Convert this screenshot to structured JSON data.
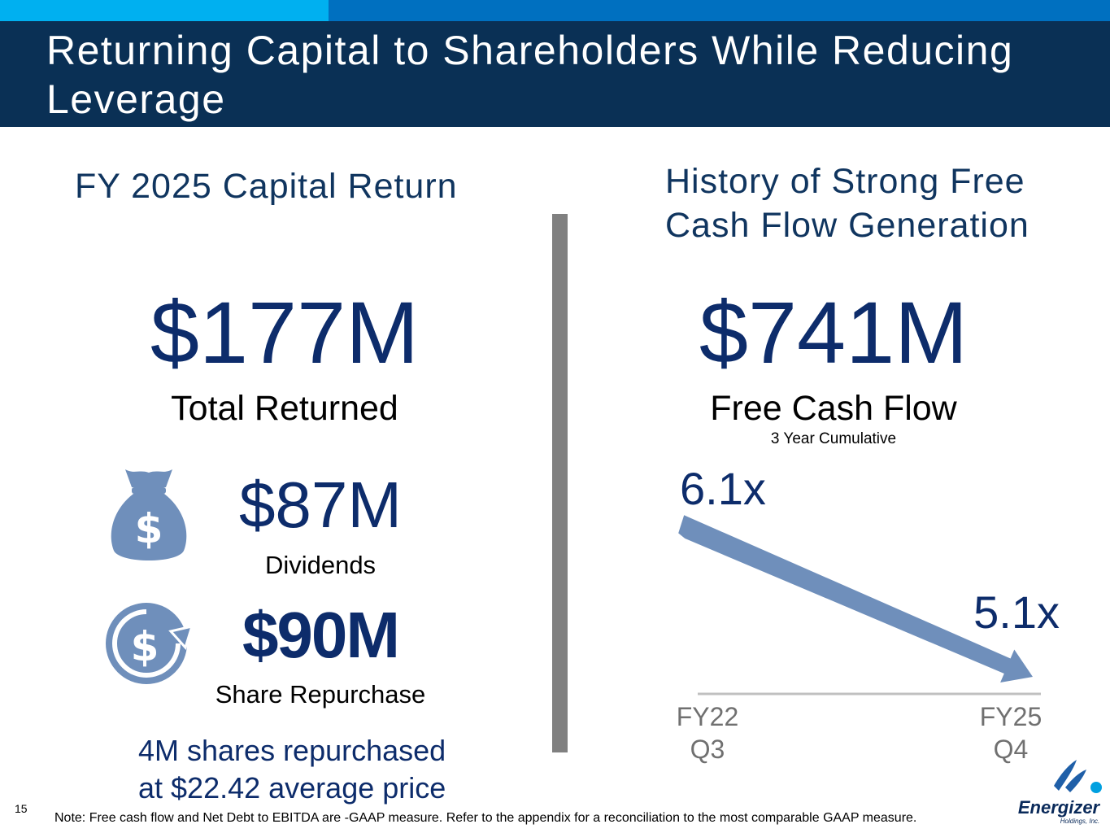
{
  "colors": {
    "title_band": "#0a3055",
    "accent_light": "#00b0f0",
    "accent_dark": "#0070c0",
    "number_blue": "#0d2c6b",
    "icon_blue": "#6f8fbb",
    "divider_gray": "#808080"
  },
  "slide": {
    "title": "Returning Capital to Shareholders While Reducing Leverage",
    "page_number": "15",
    "footnote": "Note: Free cash flow and Net Debt to EBITDA are -GAAP measure. Refer to the appendix for a reconciliation to the most comparable GAAP measure."
  },
  "left": {
    "heading": "FY 2025 Capital Return",
    "total_value": "$177M",
    "total_label": "Total Returned",
    "dividends_value": "$87M",
    "dividends_label": "Dividends",
    "dividends_icon": "money-bag-icon",
    "repurchase_value": "$90M",
    "repurchase_label": "Share Repurchase",
    "repurchase_icon": "dollar-cycle-icon",
    "repurchase_note_line1": "4M shares repurchased",
    "repurchase_note_line2": "at $22.42 average price"
  },
  "right": {
    "heading_line1": "History of Strong Free",
    "heading_line2": "Cash Flow Generation",
    "fcf_value": "$741M",
    "fcf_label": "Free Cash Flow",
    "fcf_sublabel": "3 Year Cumulative"
  },
  "chart_data": {
    "type": "line",
    "categories": [
      "FY22 Q3",
      "FY25 Q4"
    ],
    "category_lines": [
      [
        "FY22",
        "Q3"
      ],
      [
        "FY25",
        "Q4"
      ]
    ],
    "values": [
      6.1,
      5.1
    ],
    "labels": [
      "6.1x",
      "5.1x"
    ],
    "title": "",
    "xlabel": "",
    "ylabel": ""
  },
  "logo": {
    "text": "Energizer",
    "subtext": "Holdings, Inc."
  }
}
